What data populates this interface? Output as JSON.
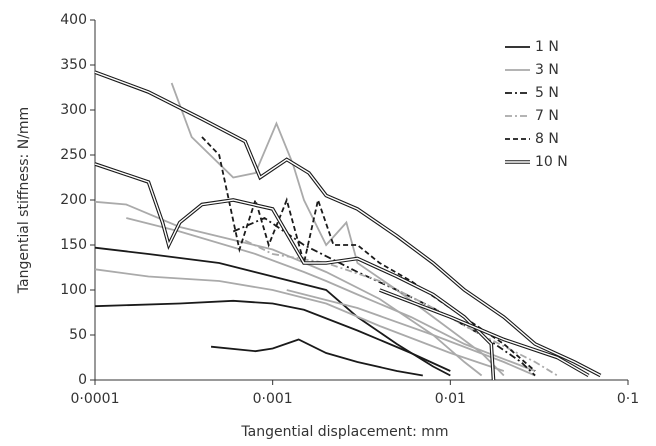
{
  "chart_data": {
    "type": "line",
    "x_label": "Tangential displacement: mm",
    "y_label": "Tangential stiffness: N/mm",
    "log_x": true,
    "xlim": [
      0.0001,
      0.1
    ],
    "xticks": [
      {
        "value": 0.0001,
        "label": "0·0001"
      },
      {
        "value": 0.001,
        "label": "0·001"
      },
      {
        "value": 0.01,
        "label": "0·01"
      },
      {
        "value": 0.1,
        "label": "0·1"
      }
    ],
    "ylim": [
      0,
      400
    ],
    "yticks": [
      0,
      50,
      100,
      150,
      200,
      250,
      300,
      350,
      400
    ],
    "legend": "upper right",
    "series": [
      {
        "name": "1 N",
        "color": "#1a1a1a",
        "dash": "",
        "double": false,
        "x": [
          0.0001,
          0.0002,
          0.0005,
          0.001,
          0.002,
          0.003,
          0.005,
          0.008,
          0.01,
          null,
          0.0001,
          0.0003,
          0.0006,
          0.001,
          0.0015,
          0.003,
          0.006,
          0.01,
          null,
          0.00045,
          0.0008,
          0.001,
          0.0014,
          0.002,
          0.003,
          0.005,
          0.007
        ],
        "values": [
          147,
          140,
          130,
          115,
          100,
          70,
          40,
          15,
          5,
          null,
          82,
          85,
          88,
          85,
          78,
          55,
          30,
          10,
          null,
          37,
          32,
          35,
          45,
          30,
          20,
          10,
          5
        ]
      },
      {
        "name": "3 N",
        "color": "#aaaaaa",
        "dash": "",
        "double": false,
        "x": [
          0.0001,
          0.00015,
          0.0003,
          0.001,
          0.002,
          0.004,
          0.008,
          0.012,
          0.015,
          null,
          0.0001,
          0.0002,
          0.0005,
          0.001,
          0.002,
          0.004,
          0.01,
          0.02,
          null,
          0.00027,
          0.00035,
          0.0006,
          0.0008,
          0.00105,
          0.0013,
          0.0015,
          0.002,
          0.0026,
          0.003,
          0.005,
          0.008,
          0.015,
          0.02,
          null,
          0.00015,
          0.0003,
          0.0008,
          0.0015,
          0.002,
          0.003,
          0.006,
          0.012,
          0.03,
          null,
          0.0012,
          0.003,
          0.008,
          0.02,
          0.03
        ],
        "values": [
          198,
          195,
          170,
          145,
          120,
          90,
          50,
          20,
          5,
          null,
          123,
          115,
          110,
          100,
          85,
          60,
          30,
          10,
          null,
          330,
          270,
          225,
          230,
          285,
          240,
          200,
          150,
          175,
          130,
          100,
          70,
          30,
          5,
          null,
          180,
          165,
          140,
          120,
          110,
          95,
          70,
          40,
          10,
          null,
          100,
          80,
          50,
          20,
          5
        ]
      },
      {
        "name": "5 N",
        "color": "#1a1a1a",
        "dash": "7,3,2,3",
        "double": false,
        "x": [
          0.0006,
          0.0009,
          0.0015,
          0.003,
          0.005,
          0.008,
          0.015,
          0.025,
          0.03
        ],
        "values": [
          165,
          180,
          150,
          120,
          100,
          80,
          50,
          20,
          5
        ]
      },
      {
        "name": "7 N",
        "color": "#aaaaaa",
        "dash": "7,3,2,3",
        "double": false,
        "x": [
          0.0007,
          0.001,
          0.002,
          0.004,
          0.008,
          0.015,
          0.03,
          0.04
        ],
        "values": [
          155,
          140,
          130,
          110,
          80,
          50,
          20,
          5
        ]
      },
      {
        "name": "8 N",
        "color": "#1a1a1a",
        "dash": "5,3",
        "double": false,
        "x": [
          0.0004,
          0.0005,
          0.00065,
          0.0008,
          0.00095,
          0.0012,
          0.0015,
          0.0018,
          0.0022,
          0.003,
          0.004,
          0.006,
          0.01,
          0.02,
          0.03
        ],
        "values": [
          270,
          250,
          145,
          200,
          150,
          200,
          130,
          200,
          150,
          150,
          130,
          110,
          80,
          40,
          10
        ]
      },
      {
        "name": "10 N",
        "color": "#1a1a1a",
        "dash": "",
        "double": true,
        "x": [
          0.0001,
          0.0002,
          0.0004,
          0.0007,
          0.00085,
          0.0012,
          0.0016,
          0.002,
          0.003,
          0.005,
          0.008,
          0.012,
          0.02,
          0.03,
          0.05,
          0.07,
          null,
          0.0001,
          0.0002,
          0.00024,
          0.00026,
          0.0003,
          0.0004,
          0.0006,
          0.001,
          0.0015,
          0.002,
          0.003,
          0.005,
          0.008,
          0.012,
          0.017,
          0.0175,
          null,
          0.004,
          0.01,
          0.02,
          0.04,
          0.06
        ],
        "values": [
          342,
          320,
          290,
          265,
          225,
          245,
          230,
          205,
          190,
          160,
          130,
          100,
          70,
          40,
          20,
          5,
          null,
          240,
          220,
          175,
          150,
          175,
          195,
          200,
          190,
          130,
          130,
          135,
          115,
          95,
          70,
          40,
          0,
          null,
          100,
          70,
          45,
          25,
          5
        ]
      }
    ]
  }
}
